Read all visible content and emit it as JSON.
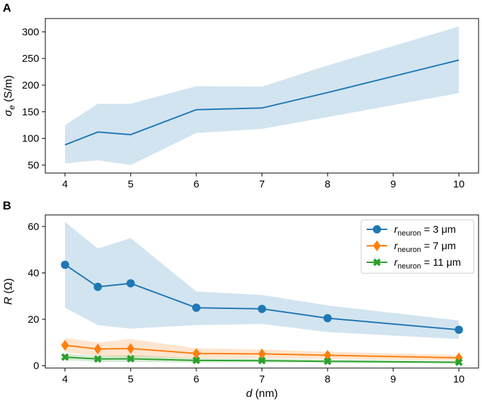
{
  "chart_data": [
    {
      "panel": "A",
      "type": "line",
      "xlabel_var": "d",
      "xlabel_unit": " (nm)",
      "ylabel_sym": "σ",
      "ylabel_sub": "e",
      "ylabel_unit": " (S/m)",
      "xlim": [
        3.7,
        10.3
      ],
      "ylim": [
        35,
        325
      ],
      "xticks": [
        4,
        5,
        6,
        7,
        8,
        9,
        10
      ],
      "yticks": [
        50,
        100,
        150,
        200,
        250,
        300
      ],
      "series": [
        {
          "name": "sigma_e",
          "color": "#1f77b4",
          "x": [
            4,
            4.5,
            5,
            6,
            7,
            8,
            10
          ],
          "y": [
            88,
            112,
            107,
            154,
            157,
            186,
            247
          ],
          "lower": [
            53,
            59,
            50,
            110,
            118,
            140,
            185
          ],
          "upper": [
            125,
            165,
            165,
            198,
            197,
            237,
            310
          ]
        }
      ]
    },
    {
      "panel": "B",
      "type": "line",
      "xlabel_var": "d",
      "xlabel_unit": " (nm)",
      "ylabel_sym": "R",
      "ylabel_unit": " (Ω)",
      "xlim": [
        3.7,
        10.3
      ],
      "ylim": [
        -1,
        65
      ],
      "xticks": [
        4,
        5,
        6,
        7,
        8,
        9,
        10
      ],
      "yticks": [
        0,
        20,
        40,
        60
      ],
      "legend_position": "top-right",
      "series": [
        {
          "name": "r_neuron = 3 μm",
          "legend_var": "r",
          "legend_sub": "neuron",
          "legend_val": " = 3 μm",
          "color": "#1f77b4",
          "marker": "circle",
          "x": [
            4,
            4.5,
            5,
            6,
            7,
            8,
            10
          ],
          "y": [
            43.5,
            34,
            35.5,
            25,
            24.5,
            20.5,
            15.5
          ],
          "lower": [
            25,
            17.5,
            16,
            17.5,
            18,
            14.5,
            11.5
          ],
          "upper": [
            62,
            50.5,
            55,
            32,
            30.5,
            26,
            19.5
          ]
        },
        {
          "name": "r_neuron = 7 μm",
          "legend_var": "r",
          "legend_sub": "neuron",
          "legend_val": " = 7 μm",
          "color": "#ff7f0e",
          "marker": "diamond",
          "x": [
            4,
            4.5,
            5,
            6,
            7,
            8,
            10
          ],
          "y": [
            8.8,
            7.2,
            7.4,
            5.3,
            5.1,
            4.5,
            3.4
          ],
          "lower": [
            5.8,
            4.2,
            3.8,
            3.2,
            3.2,
            2.9,
            2.2
          ],
          "upper": [
            12,
            10,
            11.5,
            7.5,
            7,
            6,
            4.6
          ]
        },
        {
          "name": "r_neuron = 11 μm",
          "legend_var": "r",
          "legend_sub": "neuron",
          "legend_val": " = 11 μm",
          "color": "#2ca02c",
          "marker": "x",
          "x": [
            4,
            4.5,
            5,
            6,
            7,
            8,
            10
          ],
          "y": [
            3.7,
            2.9,
            3.0,
            2.3,
            2.2,
            1.9,
            1.5
          ],
          "lower": [
            2.4,
            1.7,
            1.6,
            1.4,
            1.4,
            1.2,
            0.9
          ],
          "upper": [
            5.2,
            4.2,
            4.6,
            3.2,
            3.0,
            2.6,
            2.0
          ]
        }
      ]
    }
  ]
}
